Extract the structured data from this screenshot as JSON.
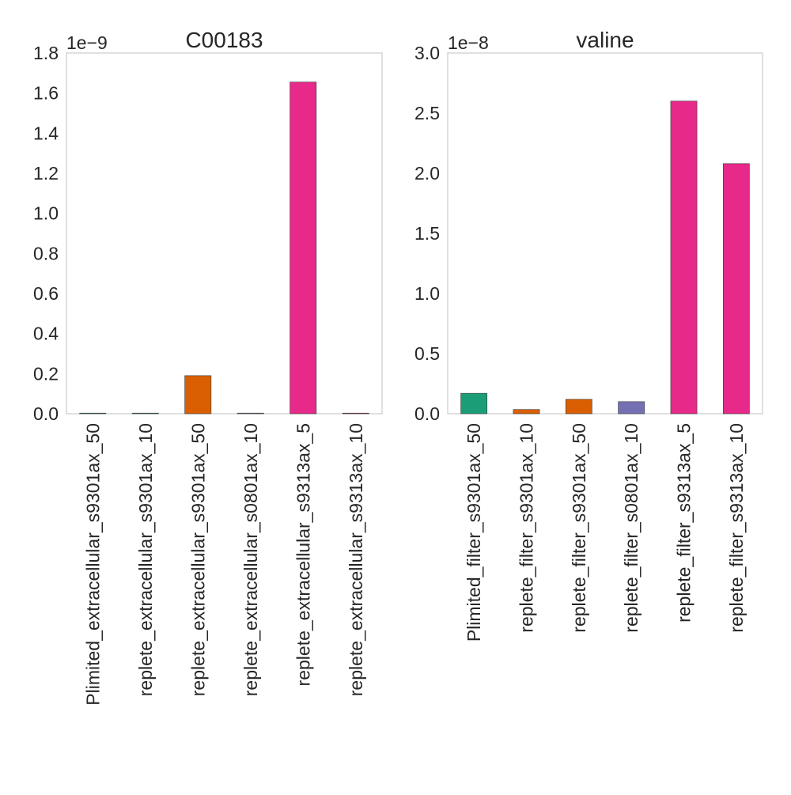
{
  "chart_data": [
    {
      "type": "bar",
      "title": "C00183",
      "offset_label": "1e−9",
      "categories": [
        "Plimited_extracellular_s9301ax_50",
        "replete_extracellular_s9301ax_10",
        "replete_extracellular_s9301ax_50",
        "replete_extracellular_s0801ax_10",
        "replete_extracellular_s9313ax_5",
        "replete_extracellular_s9313ax_10"
      ],
      "values": [
        0.0,
        0.0,
        0.19,
        0.0,
        1.655,
        0.0
      ],
      "colors": [
        "#1b9e77",
        "#1b9e77",
        "#d95f02",
        "#7570b3",
        "#e7298a",
        "#e7298a"
      ],
      "ylim": [
        0,
        1.8
      ],
      "yticks": [
        "0.0",
        "0.2",
        "0.4",
        "0.6",
        "0.8",
        "1.0",
        "1.2",
        "1.4",
        "1.6",
        "1.8"
      ],
      "grid": false
    },
    {
      "type": "bar",
      "title": "valine",
      "offset_label": "1e−8",
      "categories": [
        "Plimited_filter_s9301ax_50",
        "replete_filter_s9301ax_10",
        "replete_filter_s9301ax_50",
        "replete_filter_s0801ax_10",
        "replete_filter_s9313ax_5",
        "replete_filter_s9313ax_10"
      ],
      "values": [
        0.17,
        0.035,
        0.12,
        0.1,
        2.6,
        2.08
      ],
      "colors": [
        "#1b9e77",
        "#d95f02",
        "#d95f02",
        "#7570b3",
        "#e7298a",
        "#e7298a"
      ],
      "ylim": [
        0,
        3.0
      ],
      "yticks": [
        "0.0",
        "0.5",
        "1.0",
        "1.5",
        "2.0",
        "2.5",
        "3.0"
      ],
      "grid": false
    }
  ]
}
